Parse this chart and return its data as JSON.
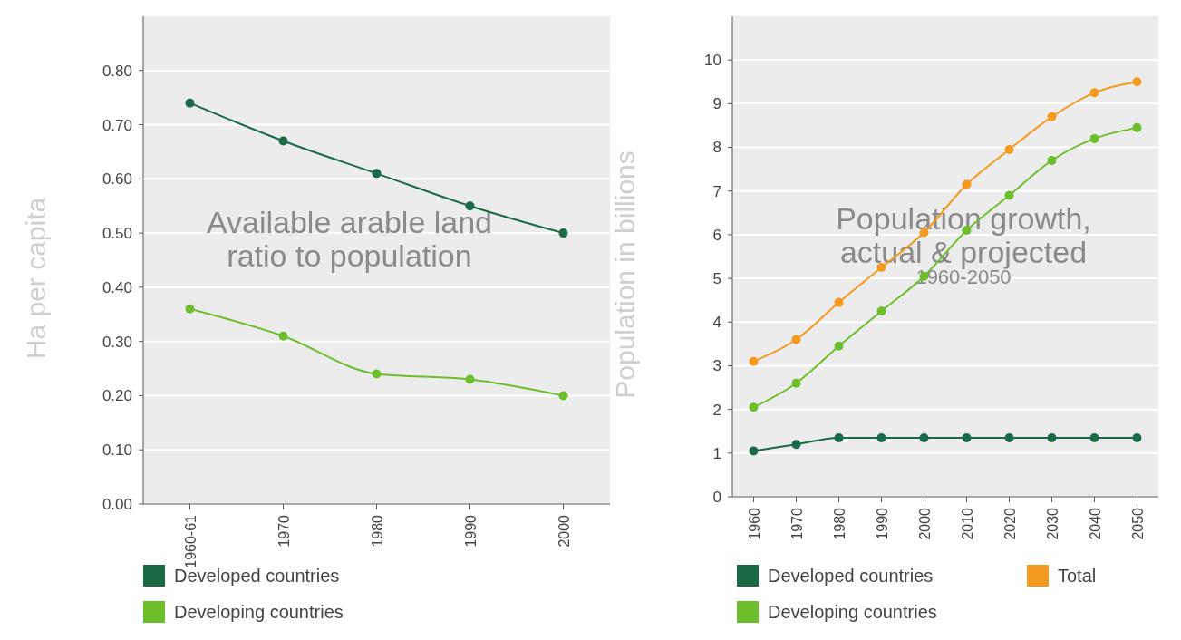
{
  "chart_data": [
    {
      "type": "line",
      "ylabel": "Ha per capita",
      "annotations": [
        "Available arable land ratio to population"
      ],
      "categories": [
        "1960-61",
        "1970",
        "1980",
        "1990",
        "2000"
      ],
      "series": [
        {
          "name": "Developed countries",
          "color": "#1a6b45",
          "values": [
            0.74,
            0.67,
            0.61,
            0.55,
            0.5
          ]
        },
        {
          "name": "Developing countries",
          "color": "#6cbf2a",
          "values": [
            0.36,
            0.31,
            0.24,
            0.23,
            0.2
          ]
        }
      ],
      "ylim": [
        0,
        0.9
      ],
      "yticks": [
        {
          "value": 0,
          "label": "0.00"
        },
        {
          "value": 0.1,
          "label": "0.10"
        },
        {
          "value": 0.2,
          "label": "0.20"
        },
        {
          "value": 0.3,
          "label": "0.30"
        },
        {
          "value": 0.4,
          "label": "0.40"
        },
        {
          "value": 0.5,
          "label": "0.50"
        },
        {
          "value": 0.6,
          "label": "0.60"
        },
        {
          "value": 0.7,
          "label": "0.70"
        },
        {
          "value": 0.8,
          "label": "0.80"
        }
      ],
      "grid": "y",
      "legend": "bottom",
      "marker": "circle"
    },
    {
      "type": "line",
      "ylabel": "Population in billions",
      "annotations": [
        "Population growth, actual & projected",
        "1960-2050"
      ],
      "categories": [
        "1960",
        "1970",
        "1980",
        "1990",
        "2000",
        "2010",
        "2020",
        "2030",
        "2040",
        "2050"
      ],
      "series": [
        {
          "name": "Developed countries",
          "color": "#1a6b45",
          "values": [
            1.05,
            1.2,
            1.35,
            1.35,
            1.35,
            1.35,
            1.35,
            1.35,
            1.35,
            1.35
          ]
        },
        {
          "name": "Developing countries",
          "color": "#6cbf2a",
          "values": [
            2.05,
            2.6,
            3.45,
            4.25,
            5.05,
            6.1,
            6.9,
            7.7,
            8.2,
            8.45
          ]
        },
        {
          "name": "Total",
          "color": "#f39a1f",
          "values": [
            3.1,
            3.6,
            4.45,
            5.25,
            6.05,
            7.15,
            7.95,
            8.7,
            9.25,
            9.5
          ]
        }
      ],
      "ylim": [
        0,
        11
      ],
      "yticks": [
        0,
        1,
        2,
        3,
        4,
        5,
        6,
        7,
        8,
        9,
        10
      ],
      "grid": "y",
      "legend": "bottom",
      "marker": "circle"
    }
  ]
}
